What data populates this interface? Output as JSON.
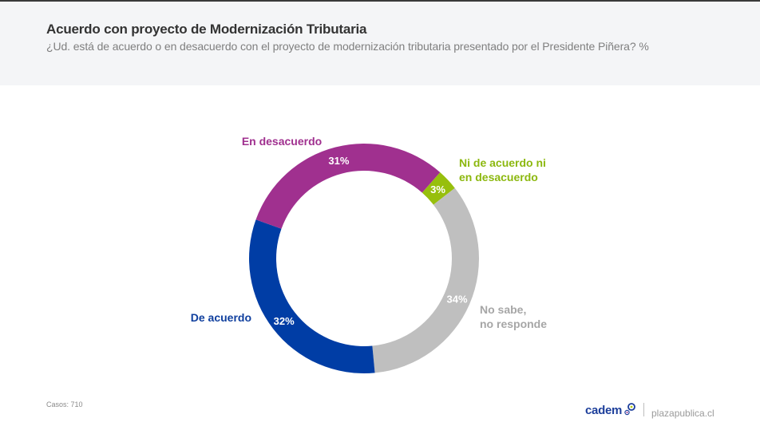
{
  "header": {
    "title": "Acuerdo con proyecto de Modernización Tributaria",
    "subtitle": "¿Ud. está de acuerdo o en desacuerdo con el proyecto de modernización tributaria presentado por el Presidente Piñera? %"
  },
  "chart_data": {
    "type": "pie",
    "variant": "donut",
    "title": "Acuerdo con proyecto de Modernización Tributaria",
    "subtitle": "¿Ud. está de acuerdo o en desacuerdo con el proyecto de modernización tributaria presentado por el Presidente Piñera? %",
    "unit": "%",
    "slices": [
      {
        "key": "nsnr",
        "label": "No sabe,\nno responde",
        "label_lines": [
          "No sabe,",
          "no responde"
        ],
        "value": 34,
        "value_label": "34%",
        "color": "#bfbfbf",
        "label_color": "#a6a6a6"
      },
      {
        "key": "acuerdo",
        "label": "De acuerdo",
        "label_lines": [
          "De acuerdo"
        ],
        "value": 32,
        "value_label": "32%",
        "color": "#003da5",
        "label_color": "#0f3f9e"
      },
      {
        "key": "desacuerdo",
        "label": "En desacuerdo",
        "label_lines": [
          "En desacuerdo"
        ],
        "value": 31,
        "value_label": "31%",
        "color": "#a0308f",
        "label_color": "#a0308f"
      },
      {
        "key": "ni",
        "label": "Ni de acuerdo ni en desacuerdo",
        "label_lines": [
          "Ni de acuerdo ni",
          "en desacuerdo"
        ],
        "value": 3,
        "value_label": "3%",
        "color": "#97bf0d",
        "label_color": "#8cb80f"
      }
    ],
    "legend": "labels-outside"
  },
  "footer": {
    "casos": "Casos: 710",
    "brand": "cadem",
    "site": "plazapublica.cl"
  }
}
